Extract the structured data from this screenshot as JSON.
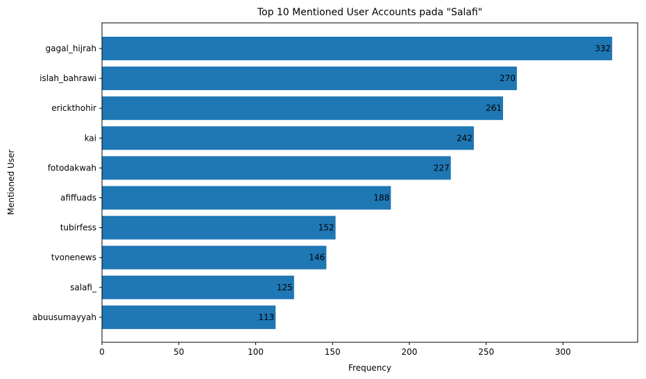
{
  "chart_data": {
    "type": "bar",
    "orientation": "horizontal",
    "title": "Top 10 Mentioned User Accounts pada \"Salafi\"",
    "xlabel": "Frequency",
    "ylabel": "Mentioned User",
    "categories": [
      "gagal_hijrah",
      "islah_bahrawi",
      "erickthohir",
      "kai",
      "fotodakwah",
      "afiffuads",
      "tubirfess",
      "tvonenews",
      "salafi_",
      "abuusumayyah"
    ],
    "values": [
      332,
      270,
      261,
      242,
      227,
      188,
      152,
      146,
      125,
      113
    ],
    "xlim": [
      0,
      348.6
    ],
    "xticks": [
      0,
      50,
      100,
      150,
      200,
      250,
      300
    ],
    "grid": false,
    "bar_color": "#1f77b4"
  }
}
